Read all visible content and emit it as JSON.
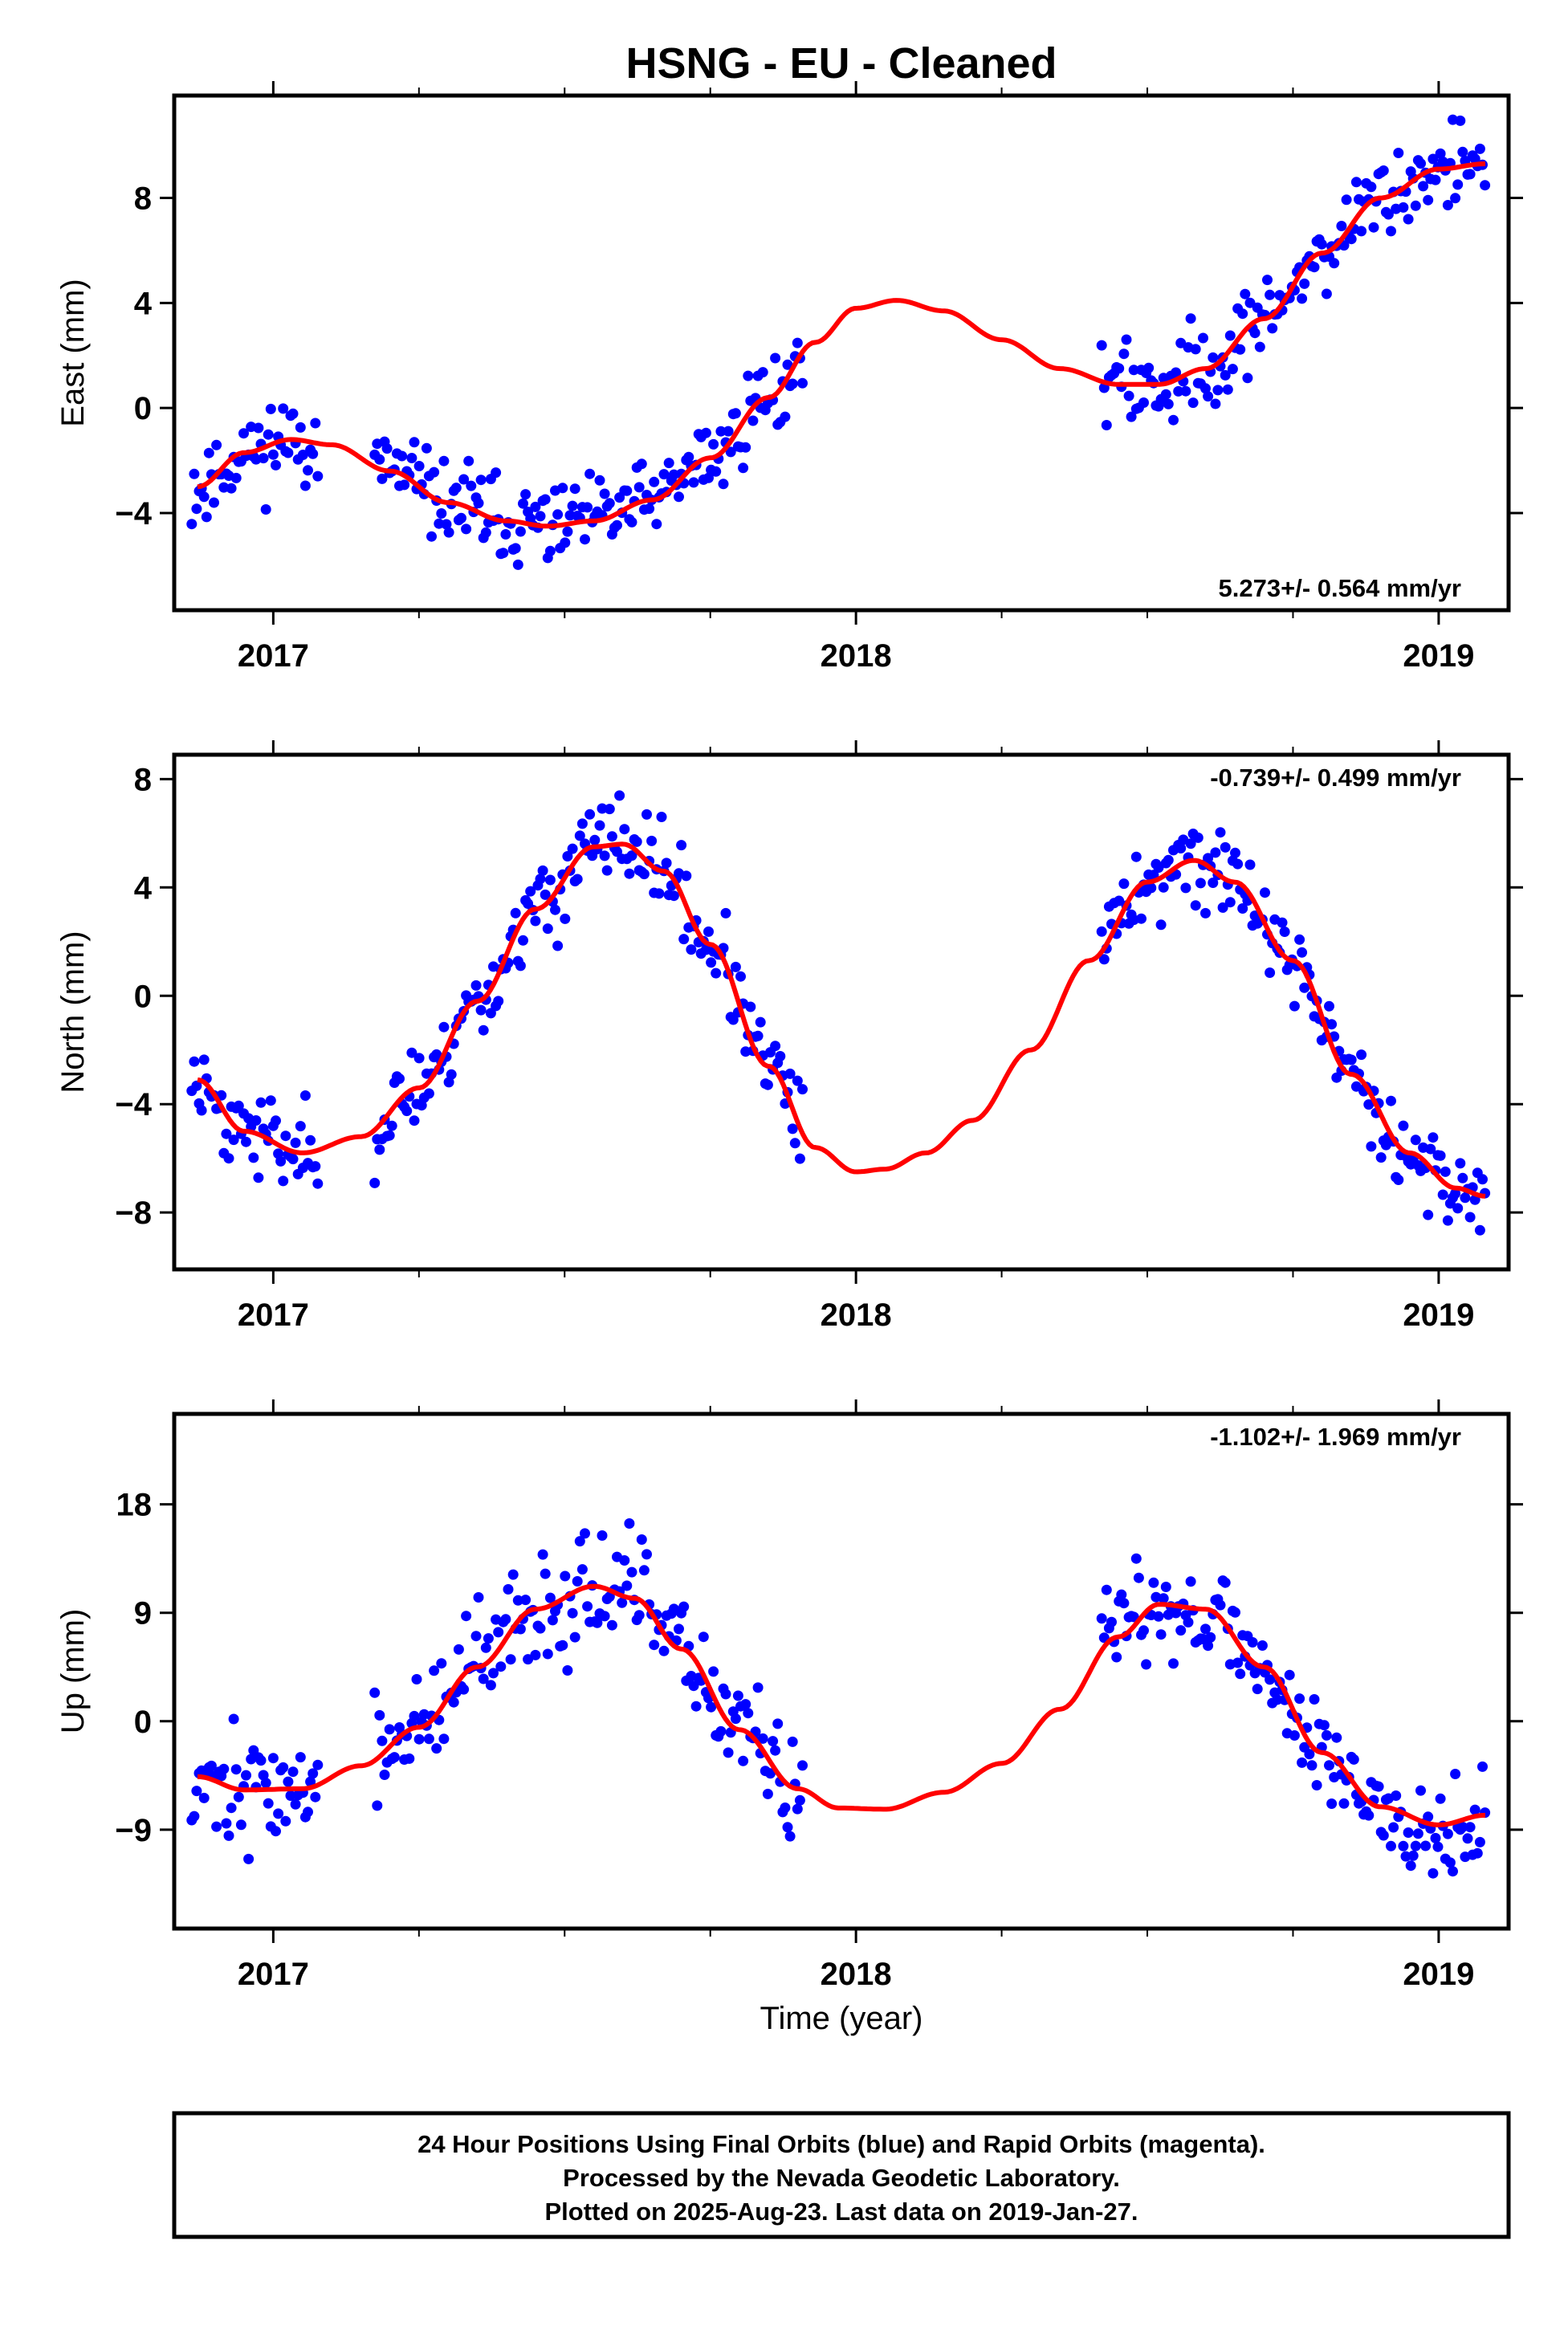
{
  "title": "HSNG  - EU - Cleaned",
  "xlabel": "Time (year)",
  "note_lines": [
    "24 Hour Positions Using Final Orbits (blue) and Rapid Orbits (magenta).",
    "Processed by the Nevada Geodetic Laboratory.",
    "Plotted on 2025-Aug-23. Last data on 2019-Jan-27."
  ],
  "colors": {
    "points": "#0000ff",
    "fit": "#ff0000",
    "frame": "#000000"
  },
  "chart_data": [
    {
      "type": "scatter",
      "ylabel": "East (mm)",
      "xlim": [
        2016.83,
        2019.12
      ],
      "ylim": [
        -7.7,
        11.9
      ],
      "xticks": [
        2017,
        2018,
        2019
      ],
      "yticks": [
        -4,
        0,
        4,
        8
      ],
      "rate": "5.273+/- 0.564 mm/yr",
      "gaps": [
        [
          2017.08,
          2017.17
        ],
        [
          2017.91,
          2018.42
        ]
      ],
      "points": {
        "scatter": 1.1,
        "seed": 11,
        "x_range": [
          2016.86,
          2019.08
        ]
      },
      "fit": {
        "x": [
          2016.87,
          2016.95,
          2017.03,
          2017.1,
          2017.2,
          2017.3,
          2017.4,
          2017.47,
          2017.55,
          2017.65,
          2017.75,
          2017.85,
          2017.93,
          2018.0,
          2018.07,
          2018.15,
          2018.25,
          2018.35,
          2018.45,
          2018.52,
          2018.6,
          2018.7,
          2018.8,
          2018.9,
          2019.0,
          2019.08
        ],
        "y": [
          -3.0,
          -1.7,
          -1.2,
          -1.4,
          -2.4,
          -3.6,
          -4.3,
          -4.5,
          -4.3,
          -3.5,
          -1.9,
          0.4,
          2.5,
          3.8,
          4.1,
          3.7,
          2.6,
          1.5,
          0.9,
          0.9,
          1.5,
          3.4,
          5.9,
          8.0,
          9.1,
          9.3
        ]
      }
    },
    {
      "type": "scatter",
      "ylabel": "North (mm)",
      "xlim": [
        2016.83,
        2019.12
      ],
      "ylim": [
        -10.1,
        8.9
      ],
      "xticks": [
        2017,
        2018,
        2019
      ],
      "yticks": [
        -8,
        -4,
        0,
        4,
        8
      ],
      "rate": "-0.739+/- 0.499 mm/yr",
      "gaps": [
        [
          2017.08,
          2017.17
        ],
        [
          2017.91,
          2018.42
        ]
      ],
      "points": {
        "scatter": 1.1,
        "seed": 23,
        "x_range": [
          2016.86,
          2019.08
        ]
      },
      "fit": {
        "x": [
          2016.87,
          2016.95,
          2017.05,
          2017.15,
          2017.25,
          2017.35,
          2017.45,
          2017.55,
          2017.6,
          2017.67,
          2017.75,
          2017.85,
          2017.93,
          2018.0,
          2018.05,
          2018.12,
          2018.2,
          2018.3,
          2018.4,
          2018.5,
          2018.58,
          2018.65,
          2018.75,
          2018.85,
          2018.95,
          2019.03,
          2019.08
        ],
        "y": [
          -3.1,
          -5.0,
          -5.8,
          -5.2,
          -3.4,
          -0.2,
          3.2,
          5.5,
          5.6,
          4.6,
          1.9,
          -2.6,
          -5.6,
          -6.5,
          -6.4,
          -5.8,
          -4.6,
          -2.0,
          1.3,
          4.2,
          5.0,
          4.2,
          1.3,
          -2.9,
          -5.8,
          -7.1,
          -7.4
        ]
      }
    },
    {
      "type": "scatter",
      "ylabel": "Up (mm)",
      "xlim": [
        2016.83,
        2019.12
      ],
      "ylim": [
        -17.2,
        25.5
      ],
      "xticks": [
        2017,
        2018,
        2019
      ],
      "yticks": [
        -9,
        0,
        9,
        18
      ],
      "rate": "-1.102+/- 1.969 mm/yr",
      "gaps": [
        [
          2017.08,
          2017.17
        ],
        [
          2017.91,
          2018.42
        ]
      ],
      "points": {
        "scatter": 3.2,
        "seed": 37,
        "x_range": [
          2016.86,
          2019.08
        ]
      },
      "fit": {
        "x": [
          2016.87,
          2016.95,
          2017.05,
          2017.15,
          2017.25,
          2017.35,
          2017.45,
          2017.55,
          2017.62,
          2017.7,
          2017.8,
          2017.9,
          2017.97,
          2018.05,
          2018.15,
          2018.25,
          2018.35,
          2018.45,
          2018.52,
          2018.6,
          2018.7,
          2018.8,
          2018.9,
          2019.0,
          2019.08
        ],
        "y": [
          -4.6,
          -5.7,
          -5.6,
          -3.7,
          -0.5,
          4.5,
          9.3,
          11.2,
          10.2,
          6.0,
          -0.7,
          -5.6,
          -7.2,
          -7.3,
          -5.9,
          -3.5,
          1.0,
          7.0,
          9.7,
          9.3,
          4.5,
          -2.6,
          -7.1,
          -8.6,
          -7.8
        ]
      }
    }
  ]
}
